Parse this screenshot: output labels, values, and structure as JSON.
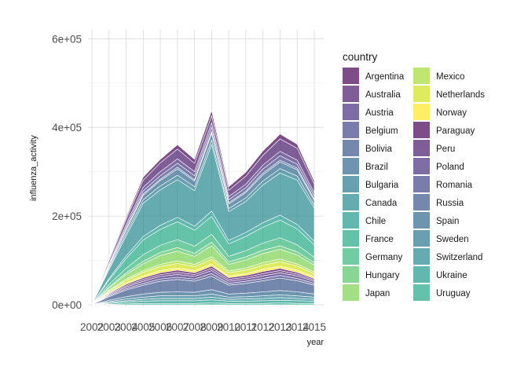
{
  "chart_data": {
    "type": "area",
    "stacked": true,
    "xlabel": "year",
    "ylabel": "influenza_activity",
    "legend_title": "country",
    "legend_position": "right",
    "grid": true,
    "ylim": [
      0,
      620000
    ],
    "xlim": [
      2002,
      2015
    ],
    "x_ticks": [
      2002,
      2003,
      2004,
      2005,
      2006,
      2007,
      2008,
      2009,
      2010,
      2011,
      2012,
      2013,
      2014,
      2015
    ],
    "x_tick_labels": [
      "2002",
      "2003",
      "2004",
      "2005",
      "2006",
      "2007",
      "2008",
      "2009",
      "2010",
      "2011",
      "2012",
      "2013",
      "2014",
      "2015"
    ],
    "y_ticks": [
      0,
      200000,
      400000,
      600000
    ],
    "y_tick_labels": [
      "0e+00",
      "2e+05",
      "4e+05",
      "6e+05"
    ],
    "x": [
      2002,
      2003,
      2004,
      2005,
      2006,
      2007,
      2008,
      2009,
      2010,
      2011,
      2012,
      2013,
      2014,
      2015
    ],
    "series": [
      {
        "name": "Argentina",
        "color": "#440154",
        "values": [
          0,
          3000,
          5000,
          7000,
          8000,
          10000,
          9000,
          12000,
          8000,
          9000,
          10000,
          11000,
          9000,
          7000
        ]
      },
      {
        "name": "Australia",
        "color": "#481a6c",
        "values": [
          0,
          6000,
          11000,
          16000,
          20000,
          22000,
          19000,
          16000,
          14000,
          18000,
          22000,
          28000,
          27000,
          20000
        ]
      },
      {
        "name": "Austria",
        "color": "#472f7d",
        "values": [
          0,
          3000,
          6000,
          8000,
          9000,
          10000,
          9000,
          10000,
          7000,
          8000,
          9000,
          10000,
          9000,
          7000
        ]
      },
      {
        "name": "Belgium",
        "color": "#414487",
        "values": [
          0,
          3000,
          5000,
          7000,
          8000,
          9000,
          9000,
          10000,
          7000,
          8000,
          9000,
          10000,
          9000,
          7000
        ]
      },
      {
        "name": "Bolivia",
        "color": "#39568c",
        "values": [
          0,
          1000,
          2000,
          3000,
          3000,
          4000,
          3000,
          4000,
          3000,
          3000,
          4000,
          4000,
          4000,
          3000
        ]
      },
      {
        "name": "Brazil",
        "color": "#31688e",
        "values": [
          0,
          4000,
          7000,
          10000,
          12000,
          14000,
          13000,
          15000,
          10000,
          12000,
          14000,
          15000,
          14000,
          10000
        ]
      },
      {
        "name": "Bulgaria",
        "color": "#2a788e",
        "values": [
          0,
          3000,
          6000,
          8000,
          9000,
          10000,
          9000,
          10000,
          7000,
          8000,
          9000,
          10000,
          9000,
          7000
        ]
      },
      {
        "name": "Canada",
        "color": "#23888e",
        "values": [
          0,
          20000,
          45000,
          75000,
          80000,
          85000,
          80000,
          150000,
          65000,
          70000,
          85000,
          95000,
          100000,
          75000
        ]
      },
      {
        "name": "Chile",
        "color": "#1f988b",
        "values": [
          0,
          3000,
          6000,
          8000,
          9000,
          10000,
          9000,
          12000,
          8000,
          9000,
          10000,
          11000,
          10000,
          8000
        ]
      },
      {
        "name": "France",
        "color": "#22a884",
        "values": [
          0,
          10000,
          22000,
          33000,
          36000,
          40000,
          36000,
          40000,
          28000,
          32000,
          36000,
          40000,
          36000,
          28000
        ]
      },
      {
        "name": "Germany",
        "color": "#35b779",
        "values": [
          0,
          6000,
          10000,
          15000,
          16000,
          18000,
          16000,
          18000,
          12000,
          14000,
          16000,
          18000,
          16000,
          12000
        ]
      },
      {
        "name": "Hungary",
        "color": "#54c568",
        "values": [
          0,
          2000,
          4000,
          6000,
          7000,
          8000,
          7000,
          8000,
          6000,
          7000,
          8000,
          8000,
          7000,
          6000
        ]
      },
      {
        "name": "Japan",
        "color": "#7ad151",
        "values": [
          0,
          5000,
          10000,
          15000,
          20000,
          22000,
          18000,
          25000,
          15000,
          18000,
          20000,
          22000,
          20000,
          15000
        ]
      },
      {
        "name": "Mexico",
        "color": "#a5db36",
        "values": [
          0,
          2000,
          3000,
          4000,
          5000,
          6000,
          5000,
          6000,
          4000,
          5000,
          6000,
          6000,
          5000,
          4000
        ]
      },
      {
        "name": "Netherlands",
        "color": "#d2e21b",
        "values": [
          0,
          3000,
          6000,
          8000,
          9000,
          10000,
          9000,
          10000,
          7000,
          8000,
          9000,
          10000,
          9000,
          7000
        ]
      },
      {
        "name": "Norway",
        "color": "#fde725",
        "values": [
          0,
          2000,
          3000,
          4000,
          5000,
          5000,
          5000,
          5000,
          4000,
          4000,
          5000,
          5000,
          5000,
          4000
        ]
      },
      {
        "name": "Paraguay",
        "color": "#440154",
        "values": [
          0,
          2000,
          3000,
          4000,
          4000,
          5000,
          4000,
          5000,
          4000,
          4000,
          5000,
          5000,
          4000,
          3000
        ]
      },
      {
        "name": "Peru",
        "color": "#481a6c",
        "values": [
          0,
          2000,
          3000,
          4000,
          4000,
          5000,
          4000,
          5000,
          4000,
          4000,
          5000,
          5000,
          4000,
          3000
        ]
      },
      {
        "name": "Poland",
        "color": "#472f7d",
        "values": [
          0,
          2000,
          4000,
          5000,
          6000,
          6000,
          6000,
          7000,
          5000,
          5000,
          6000,
          6000,
          6000,
          5000
        ]
      },
      {
        "name": "Romania",
        "color": "#414487",
        "values": [
          0,
          2000,
          3000,
          4000,
          5000,
          5000,
          5000,
          6000,
          4000,
          5000,
          5000,
          6000,
          5000,
          4000
        ]
      },
      {
        "name": "Russia",
        "color": "#39568c",
        "values": [
          0,
          8000,
          15000,
          20000,
          25000,
          28000,
          25000,
          30000,
          20000,
          22000,
          25000,
          28000,
          25000,
          20000
        ]
      },
      {
        "name": "Spain",
        "color": "#31688e",
        "values": [
          0,
          3000,
          5000,
          7000,
          8000,
          9000,
          8000,
          10000,
          7000,
          8000,
          9000,
          10000,
          9000,
          7000
        ]
      },
      {
        "name": "Sweden",
        "color": "#2a788e",
        "values": [
          0,
          2000,
          4000,
          5000,
          6000,
          6000,
          6000,
          7000,
          5000,
          5000,
          6000,
          6000,
          6000,
          5000
        ]
      },
      {
        "name": "Switzerland",
        "color": "#23888e",
        "values": [
          0,
          2000,
          3000,
          4000,
          5000,
          5000,
          5000,
          6000,
          4000,
          5000,
          5000,
          6000,
          5000,
          4000
        ]
      },
      {
        "name": "Ukraine",
        "color": "#1f988b",
        "values": [
          0,
          2000,
          4000,
          5000,
          6000,
          6000,
          6000,
          7000,
          5000,
          5000,
          6000,
          6000,
          6000,
          5000
        ]
      },
      {
        "name": "Uruguay",
        "color": "#22a884",
        "values": [
          0,
          1000,
          2000,
          3000,
          3000,
          3000,
          3000,
          4000,
          3000,
          3000,
          3000,
          4000,
          3000,
          3000
        ]
      }
    ]
  }
}
